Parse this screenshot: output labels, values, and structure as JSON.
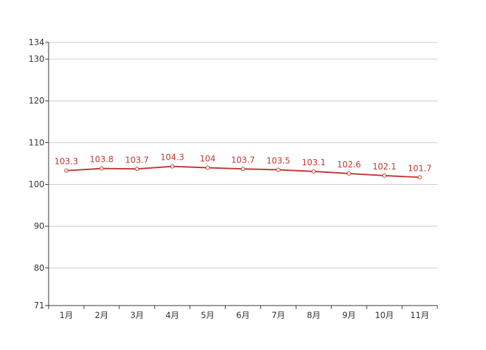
{
  "chart_data": {
    "type": "line",
    "categories": [
      "1月",
      "2月",
      "3月",
      "4月",
      "5月",
      "6月",
      "7月",
      "8月",
      "9月",
      "10月",
      "11月"
    ],
    "series": [
      {
        "values": [
          103.3,
          103.8,
          103.7,
          104.3,
          104,
          103.7,
          103.5,
          103.1,
          102.6,
          102.1,
          101.7
        ],
        "color": "#c23531"
      }
    ],
    "ylim": [
      71,
      134
    ],
    "y_ticks": [
      71,
      80,
      90,
      100,
      110,
      120,
      130,
      134
    ],
    "grid": true,
    "legend": "none",
    "title": "",
    "xlabel": "",
    "ylabel": ""
  }
}
